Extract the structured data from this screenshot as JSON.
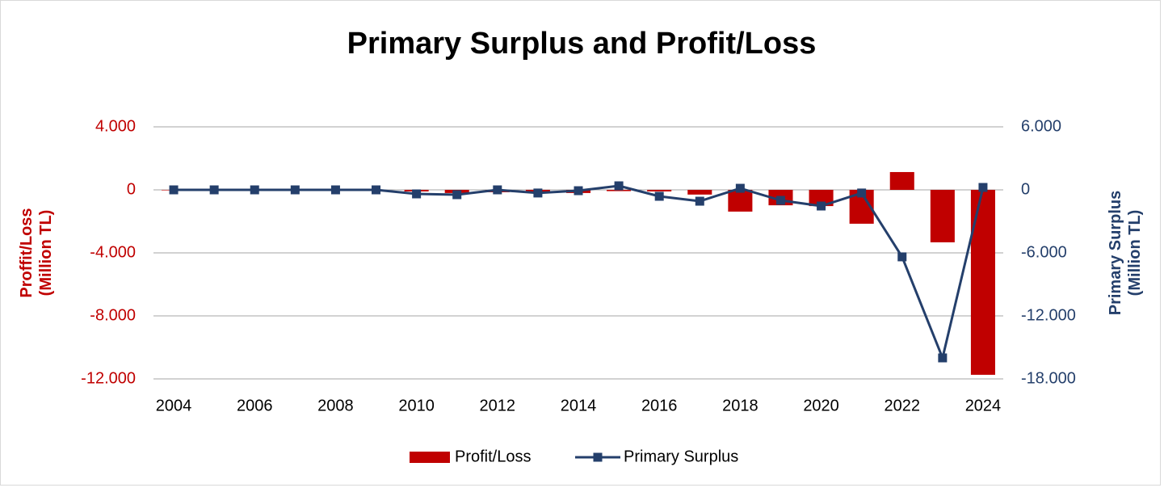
{
  "chart_data": {
    "type": "bar-line",
    "title": "Primary Surplus and Profit/Loss",
    "ylabel": [
      "Proffit/Loss",
      "(Million TL)"
    ],
    "y2label": [
      "Primary Surplus",
      "(Million TL)"
    ],
    "categories": [
      "2004",
      null,
      "2006",
      null,
      "2008",
      null,
      "2010",
      null,
      "2012",
      null,
      "2014",
      null,
      "2016",
      null,
      "2018",
      null,
      "2020",
      null,
      "2022",
      null,
      "2024"
    ],
    "series": [
      {
        "name": "Profit/Loss",
        "type": "bar",
        "color": "#c00000",
        "axis": "y",
        "values": [
          -30,
          0,
          0,
          0,
          0,
          0,
          -100,
          -200,
          -150,
          -150,
          -200,
          -80,
          -100,
          -300,
          -1380,
          -980,
          -1030,
          -2150,
          1130,
          -3330,
          -11740
        ]
      },
      {
        "name": "Primary Surplus",
        "type": "line",
        "color": "#243f6b",
        "axis": "y2",
        "values": [
          0,
          0,
          0,
          0,
          0,
          0,
          -385,
          -460,
          0,
          -300,
          -80,
          385,
          -615,
          -1080,
          150,
          -1000,
          -1540,
          -300,
          -6380,
          -16000,
          230
        ]
      }
    ],
    "ylim": [
      -12000,
      4000
    ],
    "yticks": [
      {
        "value": -12000,
        "label": "-12.000"
      },
      {
        "value": -8000,
        "label": "-8.000"
      },
      {
        "value": -4000,
        "label": "-4.000"
      },
      0,
      {
        "value": 4000,
        "label": "4.000"
      }
    ],
    "y2lim": [
      -18000,
      6000
    ],
    "y2ticks": [
      {
        "value": -18000,
        "label": "-18.000"
      },
      {
        "value": -12000,
        "label": "-12.000"
      },
      {
        "value": -6000,
        "label": "-6.000"
      },
      0,
      {
        "value": 6000,
        "label": "6.000"
      }
    ],
    "grid": true,
    "legend": "bottom"
  }
}
